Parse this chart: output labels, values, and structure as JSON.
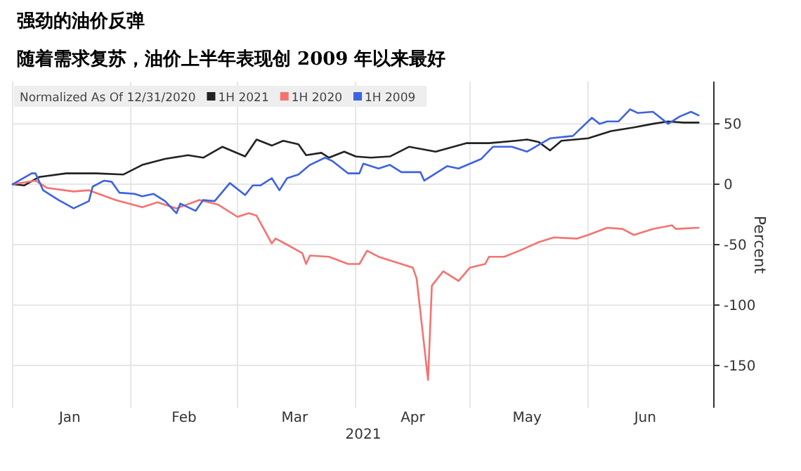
{
  "chart_data": {
    "type": "line",
    "title": "强劲的油价反弹",
    "subtitle": "随着需求复苏，油价上半年表现创 2009 年以来最好",
    "xlabel": "2021",
    "ylabel": "Percent",
    "legend_title": "Normalized As Of 12/31/2020",
    "legend": "top left",
    "grid": true,
    "line_style": "solid",
    "xlim": [
      "--01-01",
      "--07-04"
    ],
    "xticks": [
      {
        "value": "--01-01",
        "label": null
      },
      {
        "value": "--01-16",
        "label": "Jan"
      },
      {
        "value": "--02-01",
        "label": null
      },
      {
        "value": "--02-15",
        "label": "Feb"
      },
      {
        "value": "--03-01",
        "label": null
      },
      {
        "value": "--03-16",
        "label": "Mar"
      },
      {
        "value": "--04-01",
        "label": null
      },
      {
        "value": "--04-16",
        "label": "Apr"
      },
      {
        "value": "--05-01",
        "label": null
      },
      {
        "value": "--05-16",
        "label": "May"
      },
      {
        "value": "--06-01",
        "label": null
      },
      {
        "value": "--06-16",
        "label": "Jun"
      }
    ],
    "ylim": [
      -185,
      85
    ],
    "yticks": [
      50,
      0,
      -50,
      -100,
      -150
    ],
    "series": [
      {
        "name": "1H 2021",
        "color": "#222222",
        "x": [
          "--01-01",
          "--01-04",
          "--01-08",
          "--01-15",
          "--01-23",
          "--01-30",
          "--02-04",
          "--02-10",
          "--02-16",
          "--02-20",
          "--02-25",
          "--03-03",
          "--03-06",
          "--03-10",
          "--03-13",
          "--03-17",
          "--03-19",
          "--03-23",
          "--03-25",
          "--03-29",
          "--04-01",
          "--04-05",
          "--04-10",
          "--04-15",
          "--04-22",
          "--04-30",
          "--05-06",
          "--05-13",
          "--05-16",
          "--05-19",
          "--05-22",
          "--05-25",
          "--06-01",
          "--06-07",
          "--06-13",
          "--06-18",
          "--06-22",
          "--06-26",
          "--06-30"
        ],
        "values": [
          0,
          -1,
          6,
          9,
          9,
          8,
          16,
          21,
          24,
          22,
          31,
          23,
          37,
          32,
          36,
          33,
          24,
          26,
          22,
          27,
          23,
          22,
          23,
          31,
          27,
          34,
          34,
          36,
          37,
          35,
          28,
          36,
          38,
          44,
          47,
          50,
          52,
          51,
          51
        ]
      },
      {
        "name": "1H 2020",
        "color": "#f4736f",
        "x": [
          "--01-01",
          "--01-07",
          "--01-10",
          "--01-17",
          "--01-21",
          "--01-28",
          "--02-04",
          "--02-08",
          "--02-13",
          "--02-19",
          "--02-24",
          "--03-01",
          "--03-04",
          "--03-06",
          "--03-10",
          "--03-11",
          "--03-14",
          "--03-18",
          "--03-19",
          "--03-20",
          "--03-25",
          "--03-30",
          "--04-02",
          "--04-04",
          "--04-07",
          "--04-14",
          "--04-16",
          "--04-17",
          "--04-20",
          "--04-21",
          "--04-24",
          "--04-28",
          "--05-01",
          "--05-05",
          "--05-06",
          "--05-10",
          "--05-14",
          "--05-19",
          "--05-23",
          "--05-29",
          "--06-01",
          "--06-06",
          "--06-10",
          "--06-13",
          "--06-18",
          "--06-23",
          "--06-24",
          "--06-30"
        ],
        "values": [
          0,
          3,
          -3,
          -6,
          -5,
          -13,
          -19,
          -15,
          -20,
          -13,
          -17,
          -27,
          -24,
          -26,
          -49,
          -45,
          -50,
          -57,
          -66,
          -59,
          -60,
          -66,
          -66,
          -55,
          -60,
          -67,
          -69,
          -78,
          -162,
          -84,
          -72,
          -80,
          -69,
          -66,
          -60,
          -60,
          -55,
          -48,
          -44,
          -45,
          -42,
          -36,
          -37,
          -42,
          -37,
          -34,
          -37,
          -36
        ]
      },
      {
        "name": "1H 2009",
        "color": "#3d63e0",
        "x": [
          "--01-01",
          "--01-06",
          "--01-07",
          "--01-09",
          "--01-13",
          "--01-17",
          "--01-21",
          "--01-22",
          "--01-25",
          "--01-27",
          "--01-29",
          "--02-02",
          "--02-04",
          "--02-07",
          "--02-10",
          "--02-13",
          "--02-14",
          "--02-18",
          "--02-20",
          "--02-23",
          "--02-27",
          "--03-03",
          "--03-05",
          "--03-07",
          "--03-10",
          "--03-12",
          "--03-14",
          "--03-17",
          "--03-20",
          "--03-24",
          "--03-26",
          "--03-30",
          "--04-02",
          "--04-03",
          "--04-07",
          "--04-10",
          "--04-13",
          "--04-18",
          "--04-19",
          "--04-25",
          "--04-28",
          "--05-04",
          "--05-07",
          "--05-12",
          "--05-16",
          "--05-22",
          "--05-28",
          "--06-02",
          "--06-04",
          "--06-06",
          "--06-09",
          "--06-12",
          "--06-14",
          "--06-18",
          "--06-22",
          "--06-25",
          "--06-28",
          "--06-30"
        ],
        "values": [
          0,
          9,
          9,
          -5,
          -13,
          -20,
          -14,
          -2,
          3,
          2,
          -7,
          -8,
          -10,
          -8,
          -14,
          -24,
          -16,
          -22,
          -13,
          -14,
          1,
          -9,
          -1,
          -1,
          5,
          -5,
          5,
          8,
          16,
          22,
          19,
          9,
          9,
          17,
          13,
          16,
          10,
          10,
          3,
          15,
          13,
          21,
          31,
          31,
          27,
          38,
          40,
          55,
          50,
          52,
          52,
          62,
          59,
          60,
          50,
          56,
          60,
          57
        ]
      }
    ]
  }
}
